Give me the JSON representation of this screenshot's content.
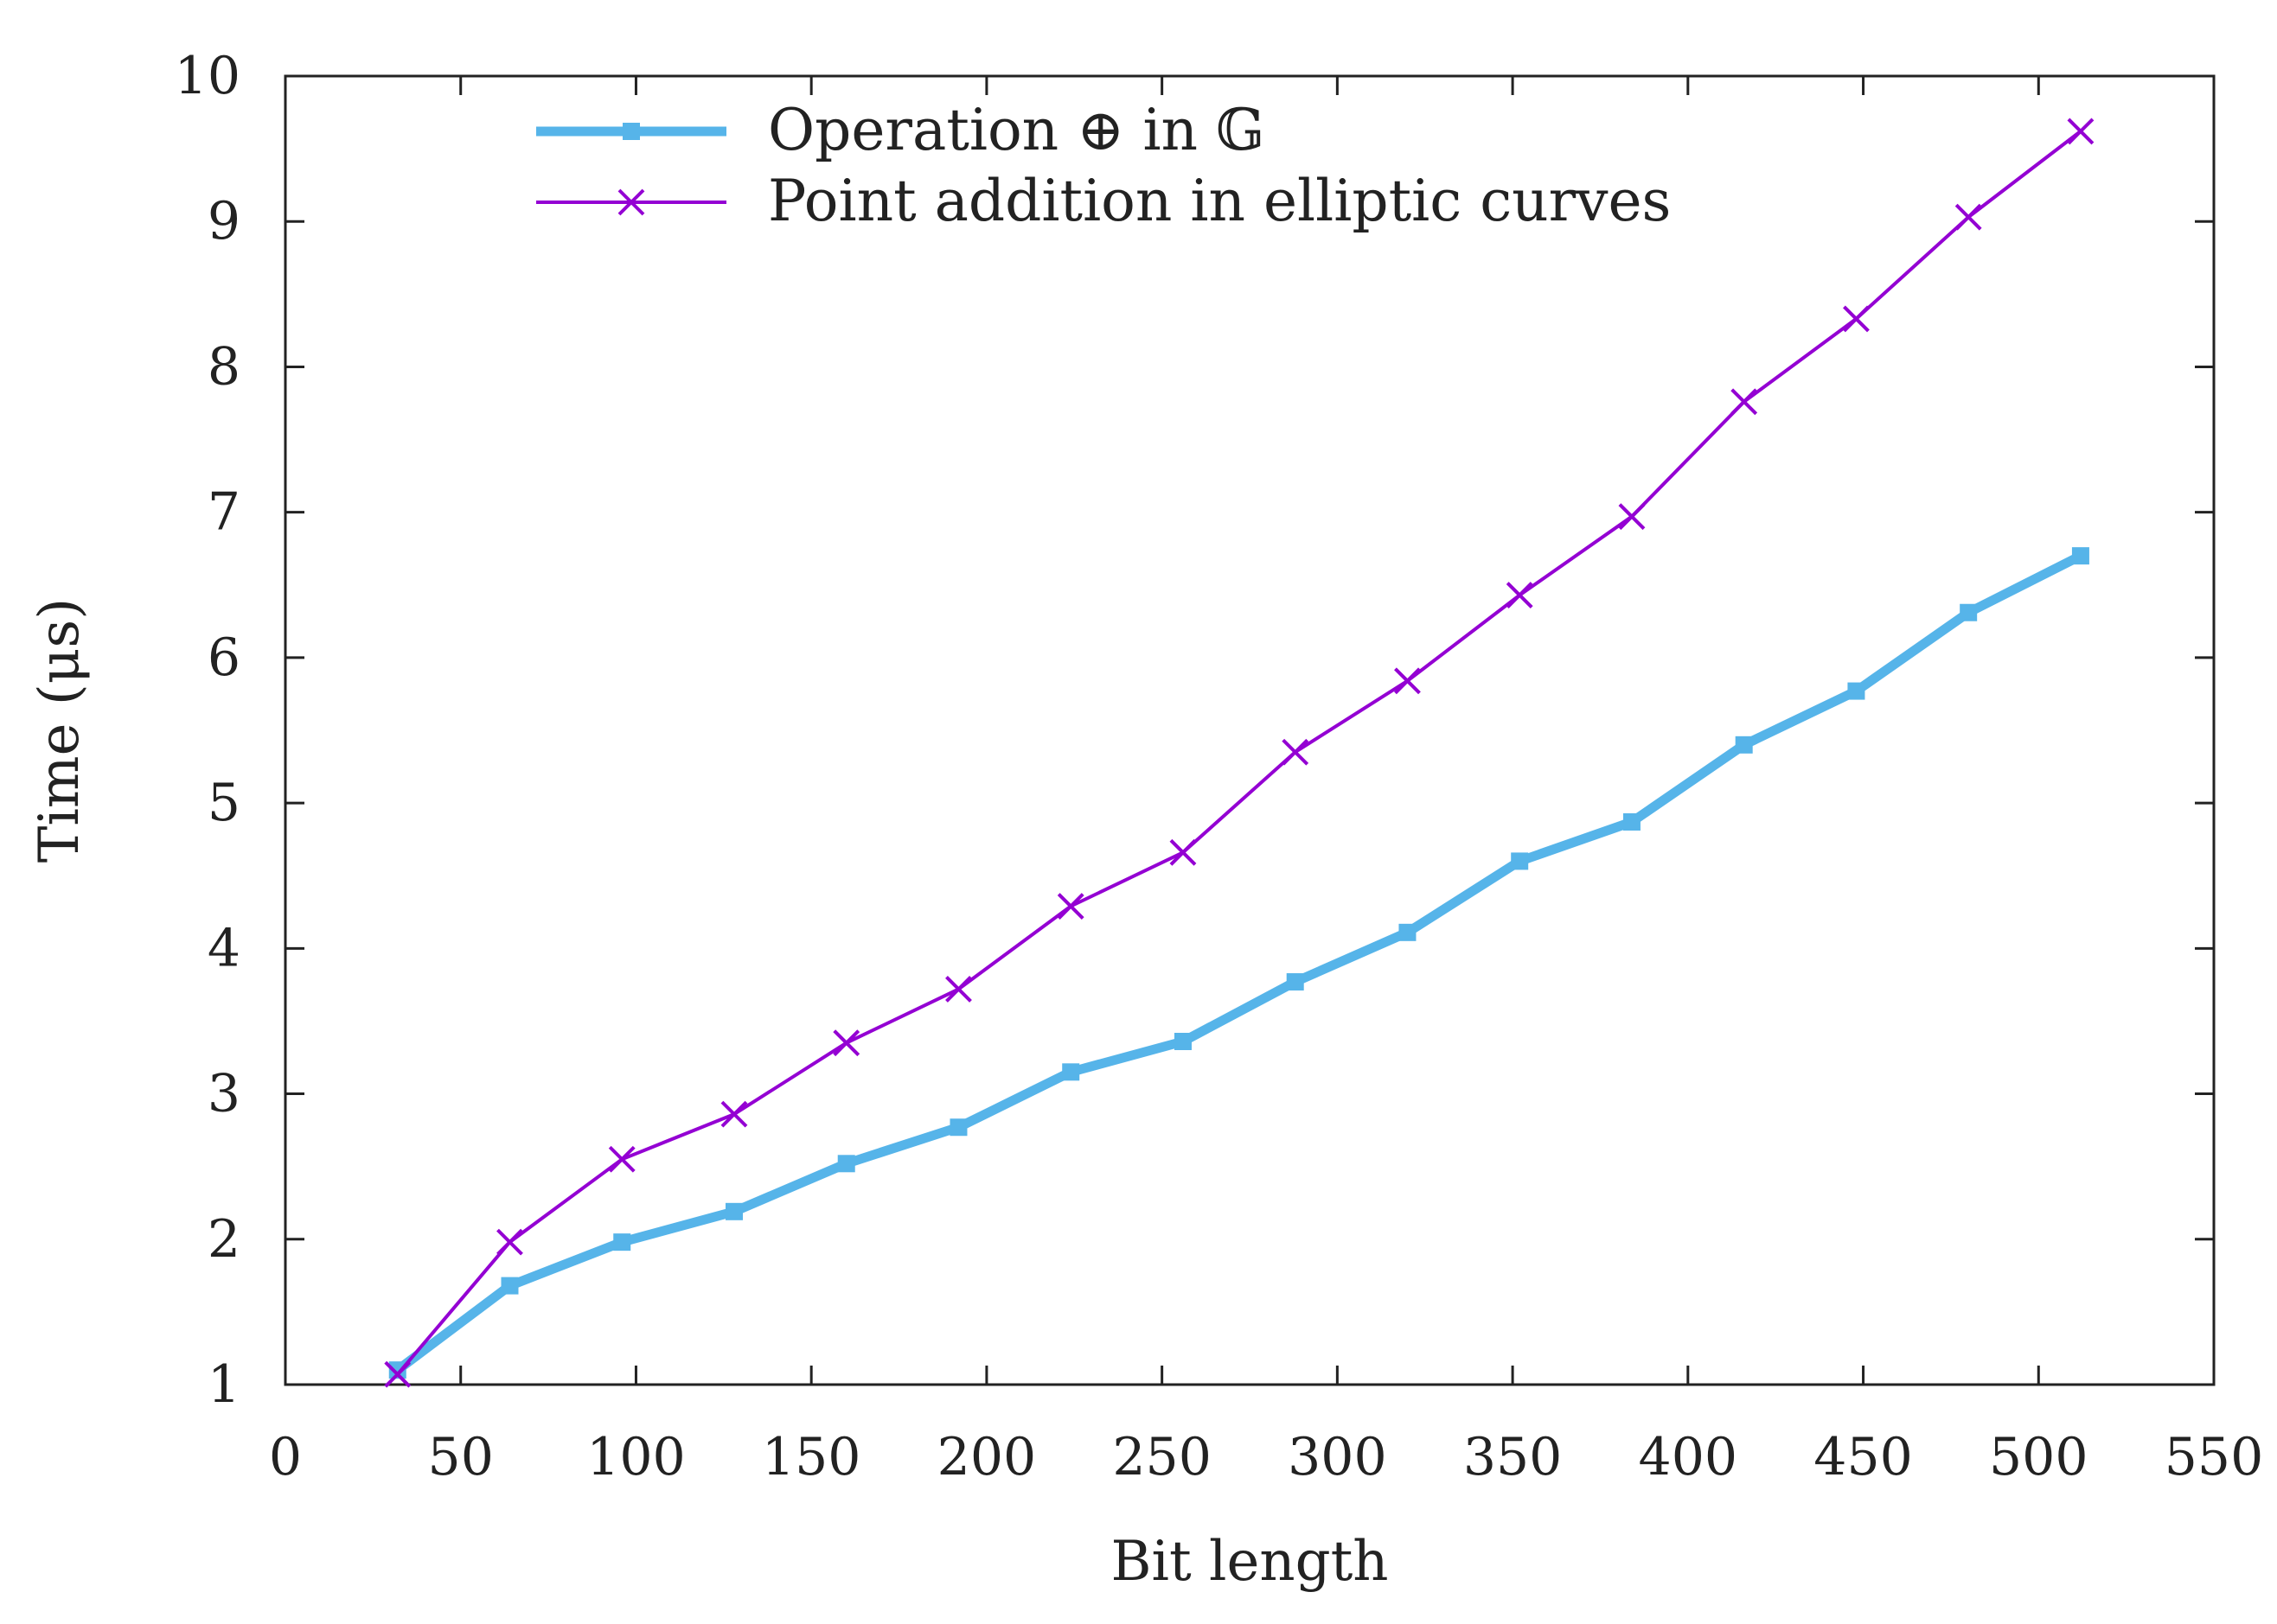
{
  "chart_data": {
    "type": "line",
    "title": "",
    "xlabel": "Bit length",
    "ylabel": "Time (μs)",
    "xlim": [
      0,
      550
    ],
    "ylim": [
      1,
      10
    ],
    "xticks": [
      0,
      50,
      100,
      150,
      200,
      250,
      300,
      350,
      400,
      450,
      500,
      550
    ],
    "yticks": [
      1,
      2,
      3,
      4,
      5,
      6,
      7,
      8,
      9,
      10
    ],
    "grid": false,
    "legend_position": "top-center",
    "x": [
      32,
      64,
      96,
      128,
      160,
      192,
      224,
      256,
      288,
      320,
      352,
      384,
      416,
      448,
      480,
      512
    ],
    "series": [
      {
        "name": "Operation ⊕ in 𝔾",
        "color": "#56b4e9",
        "marker": "square",
        "values": [
          1.1,
          1.68,
          1.98,
          2.19,
          2.52,
          2.77,
          3.15,
          3.36,
          3.77,
          4.11,
          4.6,
          4.87,
          5.4,
          5.77,
          6.31,
          6.7
        ]
      },
      {
        "name": "Point addition in elliptic curves",
        "color": "#9400d3",
        "marker": "x",
        "values": [
          1.07,
          1.98,
          2.55,
          2.86,
          3.35,
          3.72,
          4.29,
          4.66,
          5.35,
          5.84,
          6.43,
          6.97,
          7.76,
          8.33,
          9.03,
          9.62
        ]
      }
    ]
  }
}
